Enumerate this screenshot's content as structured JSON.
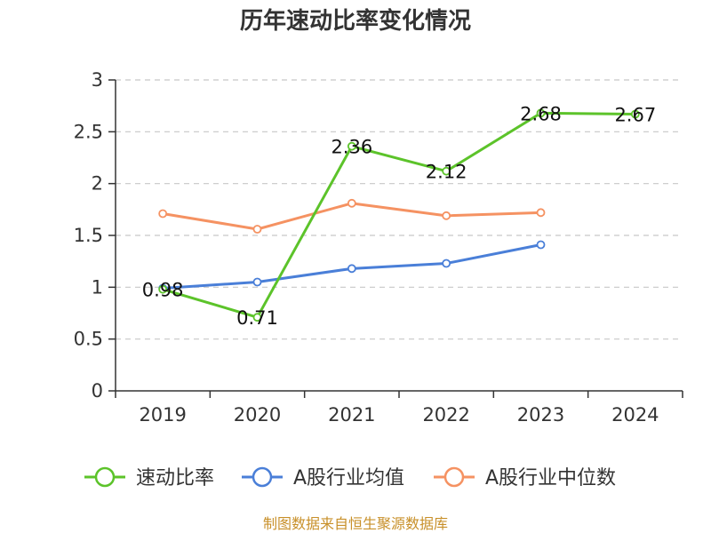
{
  "chart_data": {
    "type": "line",
    "title": "历年速动比率变化情况",
    "categories": [
      "2019",
      "2020",
      "2021",
      "2022",
      "2023",
      "2024"
    ],
    "ylim": [
      0,
      3
    ],
    "yticks": [
      "0",
      "0.5",
      "1",
      "1.5",
      "2",
      "2.5",
      "3"
    ],
    "grid": "horizontal-dashed",
    "legend_position": "bottom",
    "series": [
      {
        "name": "速动比率",
        "color": "#5cc32a",
        "values": [
          0.98,
          0.71,
          2.36,
          2.12,
          2.68,
          2.67
        ],
        "labels": [
          "0.98",
          "0.71",
          "2.36",
          "2.12",
          "2.68",
          "2.67"
        ]
      },
      {
        "name": "A股行业均值",
        "color": "#4a7fd8",
        "values": [
          0.99,
          1.05,
          1.18,
          1.23,
          1.41,
          null
        ]
      },
      {
        "name": "A股行业中位数",
        "color": "#f59262",
        "values": [
          1.71,
          1.56,
          1.81,
          1.69,
          1.72,
          null
        ]
      }
    ]
  },
  "source": {
    "text": "制图数据来自恒生聚源数据库",
    "color": "#c8902a"
  }
}
